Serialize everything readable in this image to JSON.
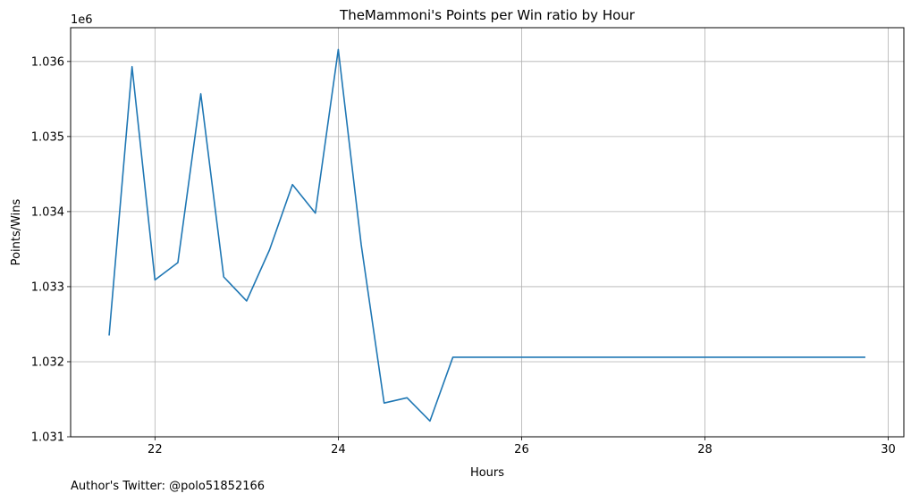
{
  "footer_text": "Author's Twitter: @polo51852166",
  "chart_data": {
    "type": "line",
    "title": "TheMammoni's Points per Win ratio by Hour",
    "xlabel": "Hours",
    "ylabel": "Points/Wins",
    "y_offset_label": "1e6",
    "xlim": [
      21.08,
      30.17
    ],
    "ylim": [
      1.031,
      1.03645
    ],
    "xticks": [
      22,
      24,
      26,
      28,
      30
    ],
    "xtick_labels": [
      "22",
      "24",
      "26",
      "28",
      "30"
    ],
    "yticks": [
      1.031,
      1.032,
      1.033,
      1.034,
      1.035,
      1.036
    ],
    "ytick_labels": [
      "1.031",
      "1.032",
      "1.033",
      "1.034",
      "1.035",
      "1.036"
    ],
    "grid": true,
    "line_color": "#1f77b4",
    "series": [
      {
        "x": [
          21.5,
          21.75,
          22.0,
          22.25,
          22.5,
          22.75,
          23.0,
          23.25,
          23.5,
          23.75,
          24.0,
          24.25,
          24.5,
          24.75,
          25.0,
          25.25,
          25.5,
          25.75,
          26.0,
          26.25,
          26.5,
          26.75,
          27.0,
          27.25,
          27.5,
          27.75,
          28.0,
          28.25,
          28.5,
          28.75,
          29.0,
          29.25,
          29.5,
          29.75
        ],
        "y": [
          1.03235,
          1.03593,
          1.03309,
          1.03332,
          1.03557,
          1.03313,
          1.03281,
          1.03349,
          1.03436,
          1.03398,
          1.03616,
          1.03356,
          1.03145,
          1.03152,
          1.03121,
          1.03206,
          1.03206,
          1.03206,
          1.03206,
          1.03206,
          1.03206,
          1.03206,
          1.03206,
          1.03206,
          1.03206,
          1.03206,
          1.03206,
          1.03206,
          1.03206,
          1.03206,
          1.03206,
          1.03206,
          1.03206,
          1.03206
        ]
      }
    ]
  }
}
